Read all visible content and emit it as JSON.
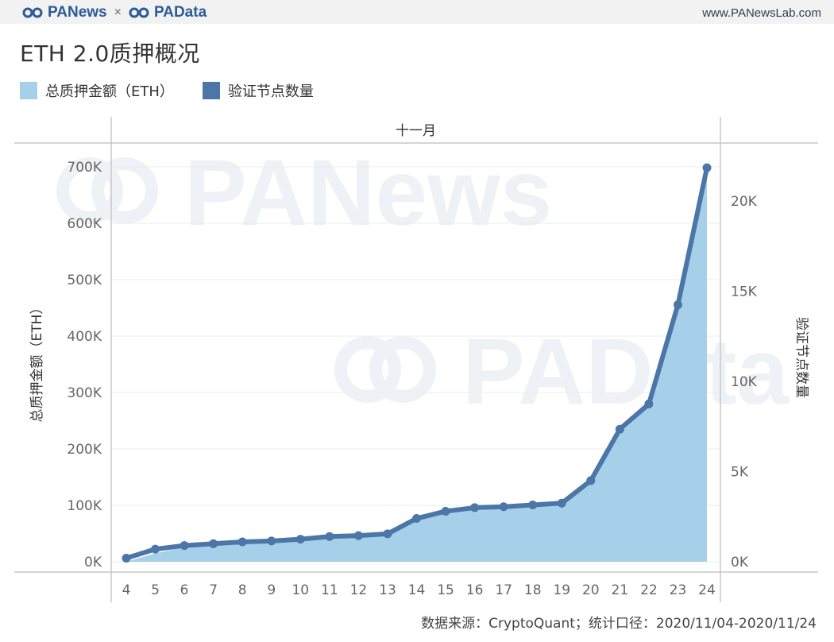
{
  "header": {
    "brand_left": "PANews",
    "brand_times": "×",
    "brand_right": "PAData",
    "site": "www.PANewsLab.com"
  },
  "title": "ETH 2.0质押概况",
  "legend": [
    {
      "label": "总质押金额（ETH）",
      "color": "#a6cfe9"
    },
    {
      "label": "验证节点数量",
      "color": "#4b76a7"
    }
  ],
  "watermarks": [
    "PANews",
    "PAData"
  ],
  "source": "数据来源：CryptoQuant；统计口径：2020/11/04-2020/11/24",
  "colors": {
    "area": "#a6cfe9",
    "line": "#4b76a7",
    "axis": "#c8c8c8",
    "grid": "#ececec",
    "tick_text": "#666666",
    "watermark": "#eef1f5"
  },
  "chart_data": {
    "type": "area",
    "header_label": "十一月",
    "x": [
      "4",
      "5",
      "6",
      "7",
      "8",
      "9",
      "10",
      "11",
      "12",
      "13",
      "14",
      "15",
      "16",
      "17",
      "18",
      "19",
      "20",
      "21",
      "22",
      "23",
      "24"
    ],
    "series": [
      {
        "name": "总质押金额（ETH）",
        "chart": "area",
        "axis": "left",
        "values": [
          0,
          15000,
          26000,
          30000,
          34000,
          36000,
          40000,
          45000,
          47000,
          52000,
          77000,
          90000,
          96000,
          98000,
          102000,
          105000,
          145000,
          228000,
          275000,
          450000,
          695000
        ]
      },
      {
        "name": "验证节点数量",
        "chart": "line",
        "axis": "right",
        "values": [
          200,
          700,
          900,
          1000,
          1100,
          1150,
          1250,
          1400,
          1450,
          1550,
          2400,
          2800,
          3000,
          3050,
          3150,
          3250,
          4500,
          7350,
          8750,
          14250,
          21850
        ]
      }
    ],
    "y_left": {
      "label": "总质押金额（ETH）",
      "range": [
        0,
        700000
      ],
      "ticks": [
        0,
        100000,
        200000,
        300000,
        400000,
        500000,
        600000,
        700000
      ],
      "tick_labels": [
        "0K",
        "100K",
        "200K",
        "300K",
        "400K",
        "500K",
        "600K",
        "700K"
      ]
    },
    "y_right": {
      "label": "验证节点数量",
      "range": [
        0,
        21900
      ],
      "ticks": [
        0,
        5000,
        10000,
        15000,
        20000
      ],
      "tick_labels": [
        "0K",
        "5K",
        "10K",
        "15K",
        "20K"
      ]
    },
    "grid": true
  }
}
